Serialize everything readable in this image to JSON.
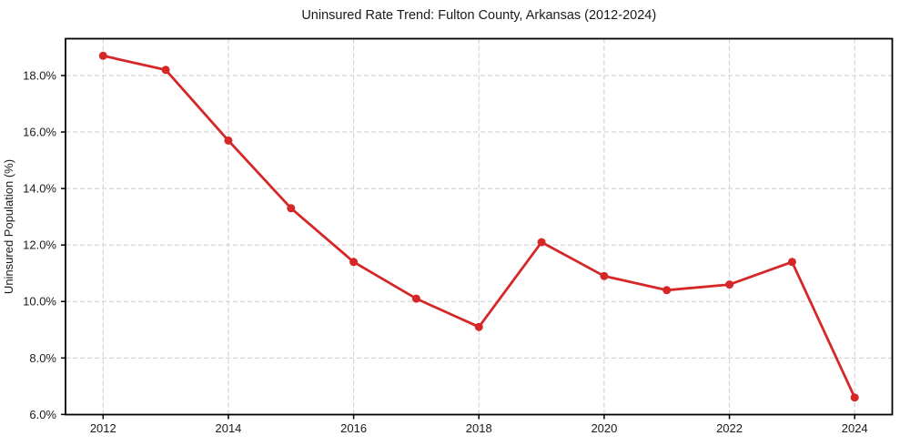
{
  "chart_data": {
    "type": "line",
    "title": "Uninsured Rate Trend: Fulton County, Arkansas (2012-2024)",
    "xlabel": "",
    "ylabel": "Uninsured Population (%)",
    "x": [
      2012,
      2013,
      2014,
      2015,
      2016,
      2017,
      2018,
      2019,
      2020,
      2021,
      2022,
      2023,
      2024
    ],
    "values": [
      18.7,
      18.2,
      15.7,
      13.3,
      11.4,
      10.1,
      9.1,
      12.1,
      10.9,
      10.4,
      10.6,
      11.4,
      6.6
    ],
    "x_ticks": [
      2012,
      2014,
      2016,
      2018,
      2020,
      2022,
      2024
    ],
    "x_tick_labels": [
      "2012",
      "2014",
      "2016",
      "2018",
      "2020",
      "2022",
      "2024"
    ],
    "y_ticks": [
      6,
      8,
      10,
      12,
      14,
      16,
      18
    ],
    "y_tick_labels": [
      "6.0%",
      "8.0%",
      "10.0%",
      "12.0%",
      "14.0%",
      "16.0%",
      "18.0%"
    ],
    "xlim": [
      2011.4,
      2024.6
    ],
    "ylim": [
      5.995,
      19.305
    ],
    "grid": true,
    "grid_style": "dashed",
    "legend_position": "none",
    "marker": "circle",
    "colors": {
      "line": "#d62728",
      "marker": "#d62728",
      "grid": "#cccccc",
      "axis": "#000000",
      "text": "#1a1a1a",
      "background": "#ffffff"
    }
  }
}
